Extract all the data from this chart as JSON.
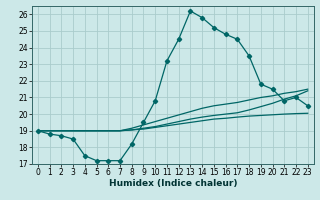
{
  "xlabel": "Humidex (Indice chaleur)",
  "ylabel": "",
  "bg_color": "#cce8e8",
  "grid_color": "#aacccc",
  "line_color": "#006666",
  "xlim": [
    -0.5,
    23.5
  ],
  "ylim": [
    17,
    26.5
  ],
  "yticks": [
    17,
    18,
    19,
    20,
    21,
    22,
    23,
    24,
    25,
    26
  ],
  "xticks": [
    0,
    1,
    2,
    3,
    4,
    5,
    6,
    7,
    8,
    9,
    10,
    11,
    12,
    13,
    14,
    15,
    16,
    17,
    18,
    19,
    20,
    21,
    22,
    23
  ],
  "hours": [
    0,
    1,
    2,
    3,
    4,
    5,
    6,
    7,
    8,
    9,
    10,
    11,
    12,
    13,
    14,
    15,
    16,
    17,
    18,
    19,
    20,
    21,
    22,
    23
  ],
  "main_line": [
    19.0,
    18.8,
    18.7,
    18.5,
    17.5,
    17.2,
    17.2,
    17.2,
    18.2,
    19.5,
    20.8,
    23.2,
    24.5,
    26.2,
    25.8,
    25.2,
    24.8,
    24.5,
    23.5,
    21.8,
    21.5,
    20.8,
    21.0,
    20.5
  ],
  "line2": [
    19.0,
    19.0,
    19.0,
    19.0,
    19.0,
    19.0,
    19.0,
    19.0,
    19.15,
    19.35,
    19.55,
    19.75,
    19.95,
    20.15,
    20.35,
    20.5,
    20.6,
    20.7,
    20.85,
    21.0,
    21.1,
    21.25,
    21.35,
    21.5
  ],
  "line3": [
    19.0,
    19.0,
    19.0,
    19.0,
    19.0,
    19.0,
    19.0,
    19.0,
    19.05,
    19.1,
    19.2,
    19.3,
    19.4,
    19.5,
    19.6,
    19.7,
    19.75,
    19.82,
    19.88,
    19.92,
    19.96,
    20.0,
    20.03,
    20.05
  ],
  "line4": [
    19.0,
    19.0,
    19.0,
    19.0,
    19.0,
    19.0,
    19.0,
    19.0,
    19.05,
    19.15,
    19.25,
    19.4,
    19.55,
    19.7,
    19.82,
    19.92,
    20.0,
    20.08,
    20.25,
    20.45,
    20.65,
    20.9,
    21.1,
    21.4
  ]
}
